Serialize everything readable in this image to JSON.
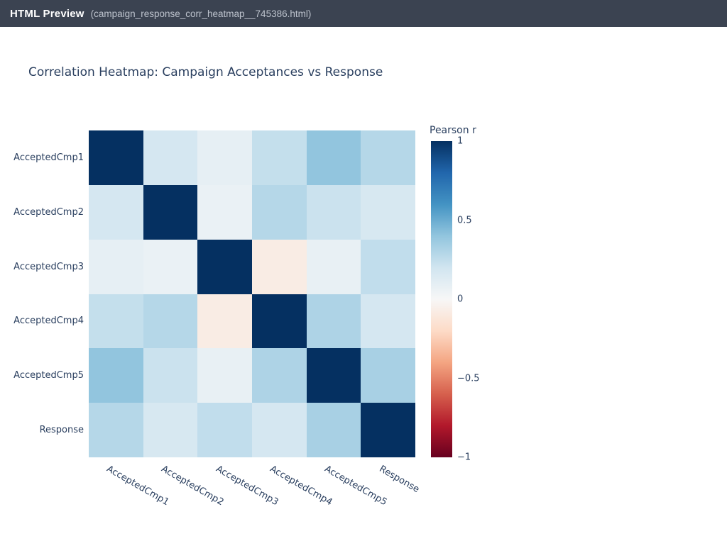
{
  "window": {
    "title": "HTML Preview",
    "filename": "(campaign_response_corr_heatmap__745386.html)"
  },
  "chart": {
    "title": "Correlation Heatmap: Campaign Acceptances vs Response"
  },
  "chart_data": {
    "type": "heatmap",
    "title": "Correlation Heatmap: Campaign Acceptances vs Response",
    "x_labels": [
      "AcceptedCmp1",
      "AcceptedCmp2",
      "AcceptedCmp3",
      "AcceptedCmp4",
      "AcceptedCmp5",
      "Response"
    ],
    "y_labels": [
      "AcceptedCmp1",
      "AcceptedCmp2",
      "AcceptedCmp3",
      "AcceptedCmp4",
      "AcceptedCmp5",
      "Response"
    ],
    "matrix": [
      [
        1.0,
        0.18,
        0.09,
        0.24,
        0.4,
        0.29
      ],
      [
        0.18,
        1.0,
        0.07,
        0.29,
        0.22,
        0.17
      ],
      [
        0.09,
        0.07,
        1.0,
        -0.08,
        0.08,
        0.25
      ],
      [
        0.24,
        0.29,
        -0.08,
        1.0,
        0.31,
        0.18
      ],
      [
        0.4,
        0.22,
        0.08,
        0.31,
        1.0,
        0.33
      ],
      [
        0.29,
        0.17,
        0.25,
        0.18,
        0.33,
        1.0
      ]
    ],
    "zmin": -1,
    "zmax": 1,
    "colorscale_name": "RdBu",
    "colorscale_stops_low_to_high": [
      "#67001f",
      "#b2182b",
      "#d6604d",
      "#f4a582",
      "#fddbc7",
      "#f7f7f7",
      "#d1e5f0",
      "#92c5de",
      "#4393c3",
      "#2166ac",
      "#053061"
    ],
    "colorbar": {
      "title": "Pearson r",
      "tick_labels": [
        "1",
        "0.5",
        "0",
        "−0.5",
        "−1"
      ],
      "tick_values": [
        1,
        0.5,
        0,
        -0.5,
        -1
      ],
      "position": "right"
    },
    "grid": false
  },
  "colors": {
    "topbar_bg": "#3b4351",
    "topbar_title": "#ffffff",
    "topbar_filename": "#bdc3cd",
    "chart_text": "#2a3f5f",
    "page_bg": "#ffffff"
  }
}
